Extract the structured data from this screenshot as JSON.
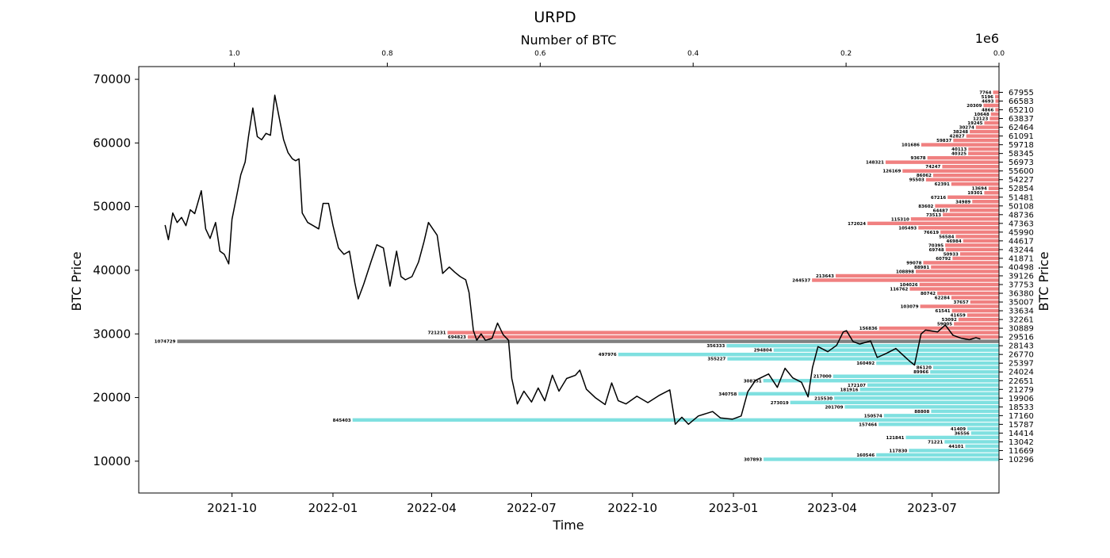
{
  "chart_data": {
    "type": "line",
    "title": "URPD",
    "xlabel": "Time",
    "ylabel_left": "BTC Price",
    "ylabel_right": "BTC Price",
    "top_xlabel": "Number of BTC",
    "top_axis_multiplier": "1e6",
    "ylim": [
      5000,
      72000
    ],
    "xlim": [
      "2021-07-08",
      "2023-08-31"
    ],
    "top_xlim": [
      1.125,
      0.0
    ],
    "yticks": [
      "10000",
      "20000",
      "30000",
      "40000",
      "50000",
      "60000",
      "70000"
    ],
    "xticks": [
      "2021-10",
      "2022-01",
      "2022-04",
      "2022-07",
      "2022-10",
      "2023-01",
      "2023-04",
      "2023-07"
    ],
    "top_xticks": [
      "1.0",
      "0.8",
      "0.6",
      "0.4",
      "0.2",
      "0.0"
    ],
    "colors": {
      "above_current_price": "#f08080",
      "below_current_price": "#7fe0e0",
      "current_price_bin": "#808080",
      "price_line": "#000000"
    },
    "series": [
      {
        "points": [
          [
            "2021-08-01",
            47100
          ],
          [
            "2021-08-04",
            44800
          ],
          [
            "2021-08-08",
            49000
          ],
          [
            "2021-08-12",
            47500
          ],
          [
            "2021-08-16",
            48300
          ],
          [
            "2021-08-20",
            47000
          ],
          [
            "2021-08-24",
            49500
          ],
          [
            "2021-08-28",
            48900
          ],
          [
            "2021-09-03",
            52500
          ],
          [
            "2021-09-07",
            46500
          ],
          [
            "2021-09-11",
            45000
          ],
          [
            "2021-09-16",
            47500
          ],
          [
            "2021-09-20",
            43000
          ],
          [
            "2021-09-24",
            42500
          ],
          [
            "2021-09-28",
            41000
          ],
          [
            "2021-10-01",
            48000
          ],
          [
            "2021-10-05",
            51500
          ],
          [
            "2021-10-09",
            55000
          ],
          [
            "2021-10-13",
            57000
          ],
          [
            "2021-10-16",
            61000
          ],
          [
            "2021-10-20",
            65500
          ],
          [
            "2021-10-24",
            61000
          ],
          [
            "2021-10-28",
            60500
          ],
          [
            "2021-11-01",
            61500
          ],
          [
            "2021-11-05",
            61200
          ],
          [
            "2021-11-09",
            67500
          ],
          [
            "2021-11-13",
            64000
          ],
          [
            "2021-11-17",
            60500
          ],
          [
            "2021-11-21",
            58500
          ],
          [
            "2021-11-25",
            57500
          ],
          [
            "2021-11-28",
            57200
          ],
          [
            "2021-12-01",
            57500
          ],
          [
            "2021-12-04",
            49000
          ],
          [
            "2021-12-09",
            47500
          ],
          [
            "2021-12-14",
            47000
          ],
          [
            "2021-12-19",
            46500
          ],
          [
            "2021-12-23",
            50500
          ],
          [
            "2021-12-28",
            50500
          ],
          [
            "2022-01-01",
            47000
          ],
          [
            "2022-01-06",
            43500
          ],
          [
            "2022-01-11",
            42500
          ],
          [
            "2022-01-16",
            43000
          ],
          [
            "2022-01-21",
            38000
          ],
          [
            "2022-01-24",
            35500
          ],
          [
            "2022-01-29",
            37800
          ],
          [
            "2022-02-05",
            41500
          ],
          [
            "2022-02-10",
            44000
          ],
          [
            "2022-02-16",
            43500
          ],
          [
            "2022-02-22",
            37500
          ],
          [
            "2022-02-28",
            43000
          ],
          [
            "2022-03-04",
            39000
          ],
          [
            "2022-03-08",
            38500
          ],
          [
            "2022-03-14",
            39000
          ],
          [
            "2022-03-20",
            41300
          ],
          [
            "2022-03-25",
            44500
          ],
          [
            "2022-03-29",
            47500
          ],
          [
            "2022-04-02",
            46500
          ],
          [
            "2022-04-06",
            45500
          ],
          [
            "2022-04-11",
            39500
          ],
          [
            "2022-04-17",
            40500
          ],
          [
            "2022-04-22",
            39700
          ],
          [
            "2022-04-27",
            39000
          ],
          [
            "2022-05-02",
            38500
          ],
          [
            "2022-05-05",
            36500
          ],
          [
            "2022-05-09",
            30500
          ],
          [
            "2022-05-12",
            29000
          ],
          [
            "2022-05-16",
            30000
          ],
          [
            "2022-05-20",
            29000
          ],
          [
            "2022-05-26",
            29300
          ],
          [
            "2022-05-31",
            31700
          ],
          [
            "2022-06-05",
            29900
          ],
          [
            "2022-06-10",
            29000
          ],
          [
            "2022-06-13",
            23000
          ],
          [
            "2022-06-18",
            19000
          ],
          [
            "2022-06-24",
            21000
          ],
          [
            "2022-07-01",
            19300
          ],
          [
            "2022-07-07",
            21500
          ],
          [
            "2022-07-13",
            19500
          ],
          [
            "2022-07-20",
            23500
          ],
          [
            "2022-07-26",
            21000
          ],
          [
            "2022-08-02",
            23000
          ],
          [
            "2022-08-10",
            23500
          ],
          [
            "2022-08-14",
            24300
          ],
          [
            "2022-08-20",
            21300
          ],
          [
            "2022-08-28",
            20000
          ],
          [
            "2022-09-06",
            18900
          ],
          [
            "2022-09-12",
            22300
          ],
          [
            "2022-09-18",
            19500
          ],
          [
            "2022-09-25",
            19000
          ],
          [
            "2022-10-05",
            20200
          ],
          [
            "2022-10-15",
            19200
          ],
          [
            "2022-10-25",
            20300
          ],
          [
            "2022-11-04",
            21200
          ],
          [
            "2022-11-09",
            15800
          ],
          [
            "2022-11-15",
            16900
          ],
          [
            "2022-11-21",
            15800
          ],
          [
            "2022-11-30",
            17100
          ],
          [
            "2022-12-13",
            17800
          ],
          [
            "2022-12-20",
            16800
          ],
          [
            "2022-12-31",
            16600
          ],
          [
            "2023-01-08",
            17100
          ],
          [
            "2023-01-14",
            20900
          ],
          [
            "2023-01-21",
            22700
          ],
          [
            "2023-02-02",
            23700
          ],
          [
            "2023-02-10",
            21600
          ],
          [
            "2023-02-17",
            24600
          ],
          [
            "2023-02-24",
            23100
          ],
          [
            "2023-03-04",
            22400
          ],
          [
            "2023-03-10",
            20100
          ],
          [
            "2023-03-14",
            24700
          ],
          [
            "2023-03-19",
            28000
          ],
          [
            "2023-03-28",
            27200
          ],
          [
            "2023-04-05",
            28200
          ],
          [
            "2023-04-11",
            30300
          ],
          [
            "2023-04-14",
            30500
          ],
          [
            "2023-04-20",
            28800
          ],
          [
            "2023-04-26",
            28400
          ],
          [
            "2023-05-06",
            28900
          ],
          [
            "2023-05-12",
            26300
          ],
          [
            "2023-05-20",
            26900
          ],
          [
            "2023-05-29",
            27700
          ],
          [
            "2023-06-10",
            25800
          ],
          [
            "2023-06-15",
            25100
          ],
          [
            "2023-06-21",
            30000
          ],
          [
            "2023-06-25",
            30600
          ],
          [
            "2023-07-06",
            30300
          ],
          [
            "2023-07-13",
            31400
          ],
          [
            "2023-07-20",
            29800
          ],
          [
            "2023-07-28",
            29300
          ],
          [
            "2023-08-04",
            29100
          ],
          [
            "2023-08-10",
            29400
          ],
          [
            "2023-08-14",
            29200
          ]
        ]
      }
    ],
    "bars": [
      {
        "price": 67955,
        "btc": 7764,
        "label": "7764"
      },
      {
        "price": 67270,
        "btc": 5196,
        "label": "5196"
      },
      {
        "price": 66583,
        "btc": 4693,
        "label": "4693"
      },
      {
        "price": 65897,
        "btc": 20309,
        "label": "20309"
      },
      {
        "price": 65210,
        "btc": 4866,
        "label": "4866"
      },
      {
        "price": 64523,
        "btc": 10648,
        "label": "10648"
      },
      {
        "price": 63837,
        "btc": 12123,
        "label": "12123"
      },
      {
        "price": 63150,
        "btc": 19245,
        "label": "19245"
      },
      {
        "price": 62464,
        "btc": 30274,
        "label": "30274"
      },
      {
        "price": 61777,
        "btc": 38248,
        "label": "38248"
      },
      {
        "price": 61091,
        "btc": 42827,
        "label": "42827"
      },
      {
        "price": 60405,
        "btc": 59837,
        "label": "59837"
      },
      {
        "price": 59718,
        "btc": 101686,
        "label": "101686"
      },
      {
        "price": 59032,
        "btc": 40113,
        "label": "40113"
      },
      {
        "price": 58345,
        "btc": 40325,
        "label": "40325"
      },
      {
        "price": 57659,
        "btc": 93678,
        "label": "93678"
      },
      {
        "price": 56973,
        "btc": 148321,
        "label": "148321"
      },
      {
        "price": 56286,
        "btc": 74247,
        "label": "74247"
      },
      {
        "price": 55600,
        "btc": 126169,
        "label": "126169"
      },
      {
        "price": 54914,
        "btc": 86062,
        "label": "86062"
      },
      {
        "price": 54227,
        "btc": 95503,
        "label": "95503"
      },
      {
        "price": 53541,
        "btc": 62391,
        "label": "62391"
      },
      {
        "price": 52854,
        "btc": 13694,
        "label": "13694"
      },
      {
        "price": 52168,
        "btc": 19301,
        "label": "19301"
      },
      {
        "price": 51481,
        "btc": 67216,
        "label": "67216"
      },
      {
        "price": 50795,
        "btc": 34989,
        "label": "34989"
      },
      {
        "price": 50108,
        "btc": 83602,
        "label": "83602"
      },
      {
        "price": 49422,
        "btc": 64487,
        "label": "64487"
      },
      {
        "price": 48736,
        "btc": 73513,
        "label": "73513"
      },
      {
        "price": 48049,
        "btc": 115310,
        "label": "115310"
      },
      {
        "price": 47363,
        "btc": 172024,
        "label": "172024"
      },
      {
        "price": 46676,
        "btc": 105493,
        "label": "105493"
      },
      {
        "price": 45990,
        "btc": 76619,
        "label": "76619"
      },
      {
        "price": 45303,
        "btc": 56584,
        "label": "56584"
      },
      {
        "price": 44617,
        "btc": 46984,
        "label": "46984"
      },
      {
        "price": 43930,
        "btc": 70395,
        "label": "70395"
      },
      {
        "price": 43244,
        "btc": 69748,
        "label": "69748"
      },
      {
        "price": 42558,
        "btc": 50933,
        "label": "50933"
      },
      {
        "price": 41871,
        "btc": 60792,
        "label": "60792"
      },
      {
        "price": 41185,
        "btc": 99078,
        "label": "99078"
      },
      {
        "price": 40498,
        "btc": 88981,
        "label": "88981"
      },
      {
        "price": 39812,
        "btc": 108898,
        "label": "108898"
      },
      {
        "price": 39126,
        "btc": 213643,
        "label": "213643"
      },
      {
        "price": 38439,
        "btc": 244537,
        "label": "244537"
      },
      {
        "price": 37753,
        "btc": 104026,
        "label": "104026"
      },
      {
        "price": 37066,
        "btc": 116762,
        "label": "116762"
      },
      {
        "price": 36380,
        "btc": 80742,
        "label": "80742"
      },
      {
        "price": 35693,
        "btc": 62284,
        "label": "62284"
      },
      {
        "price": 35007,
        "btc": 37657,
        "label": "37657"
      },
      {
        "price": 34321,
        "btc": 103079,
        "label": "103079"
      },
      {
        "price": 33634,
        "btc": 61541,
        "label": "61541"
      },
      {
        "price": 32948,
        "btc": 41659,
        "label": "41659"
      },
      {
        "price": 32261,
        "btc": 53092,
        "label": "53092"
      },
      {
        "price": 31575,
        "btc": 59005,
        "label": "59005"
      },
      {
        "price": 30889,
        "btc": 156836,
        "label": "156836"
      },
      {
        "price": 30202,
        "btc": 721231,
        "label": "721231"
      },
      {
        "price": 29516,
        "btc": 694823,
        "label": "694823"
      },
      {
        "price": 28829,
        "btc": 1074729,
        "label": "1074729"
      },
      {
        "price": 28143,
        "btc": 356333,
        "label": "356333"
      },
      {
        "price": 27456,
        "btc": 294804,
        "label": "294804"
      },
      {
        "price": 26770,
        "btc": 497976,
        "label": "497976"
      },
      {
        "price": 26084,
        "btc": 355227,
        "label": "355227"
      },
      {
        "price": 25397,
        "btc": 160492,
        "label": "160492"
      },
      {
        "price": 24711,
        "btc": 86120,
        "label": "86120"
      },
      {
        "price": 24024,
        "btc": 89966,
        "label": "89966"
      },
      {
        "price": 23338,
        "btc": 217000,
        "label": "217000"
      },
      {
        "price": 22651,
        "btc": 308251,
        "label": "308251"
      },
      {
        "price": 21965,
        "btc": 172107,
        "label": "172107"
      },
      {
        "price": 21279,
        "btc": 181916,
        "label": "181916"
      },
      {
        "price": 20592,
        "btc": 340758,
        "label": "340758"
      },
      {
        "price": 19906,
        "btc": 215530,
        "label": "215530"
      },
      {
        "price": 19219,
        "btc": 273019,
        "label": "273019"
      },
      {
        "price": 18533,
        "btc": 201709,
        "label": "201709"
      },
      {
        "price": 17846,
        "btc": 88808,
        "label": "88808"
      },
      {
        "price": 17160,
        "btc": 150574,
        "label": "150574"
      },
      {
        "price": 16474,
        "btc": 845403,
        "label": "845403"
      },
      {
        "price": 15787,
        "btc": 157464,
        "label": "157464"
      },
      {
        "price": 15101,
        "btc": 41409,
        "label": "41409"
      },
      {
        "price": 14414,
        "btc": 36556,
        "label": "36556"
      },
      {
        "price": 13728,
        "btc": 121841,
        "label": "121841"
      },
      {
        "price": 13042,
        "btc": 71221,
        "label": "71221"
      },
      {
        "price": 12355,
        "btc": 44101,
        "label": "44101"
      },
      {
        "price": 11669,
        "btc": 117830,
        "label": "117830"
      },
      {
        "price": 10982,
        "btc": 160546,
        "label": "160546"
      },
      {
        "price": 10296,
        "btc": 307893,
        "label": "307893"
      }
    ],
    "right_tick_labels": [
      "67955",
      "66583",
      "65210",
      "63837",
      "62464",
      "61091",
      "59718",
      "58345",
      "56973",
      "55600",
      "54227",
      "52854",
      "51481",
      "50108",
      "48736",
      "47363",
      "45990",
      "44617",
      "43244",
      "41871",
      "40498",
      "39126",
      "37753",
      "36380",
      "35007",
      "33634",
      "32261",
      "30889",
      "29516",
      "28143",
      "26770",
      "25397",
      "24024",
      "22651",
      "21279",
      "19906",
      "18533",
      "17160",
      "15787",
      "14414",
      "13042",
      "11669",
      "10296"
    ],
    "current_price_bin": 28829
  }
}
